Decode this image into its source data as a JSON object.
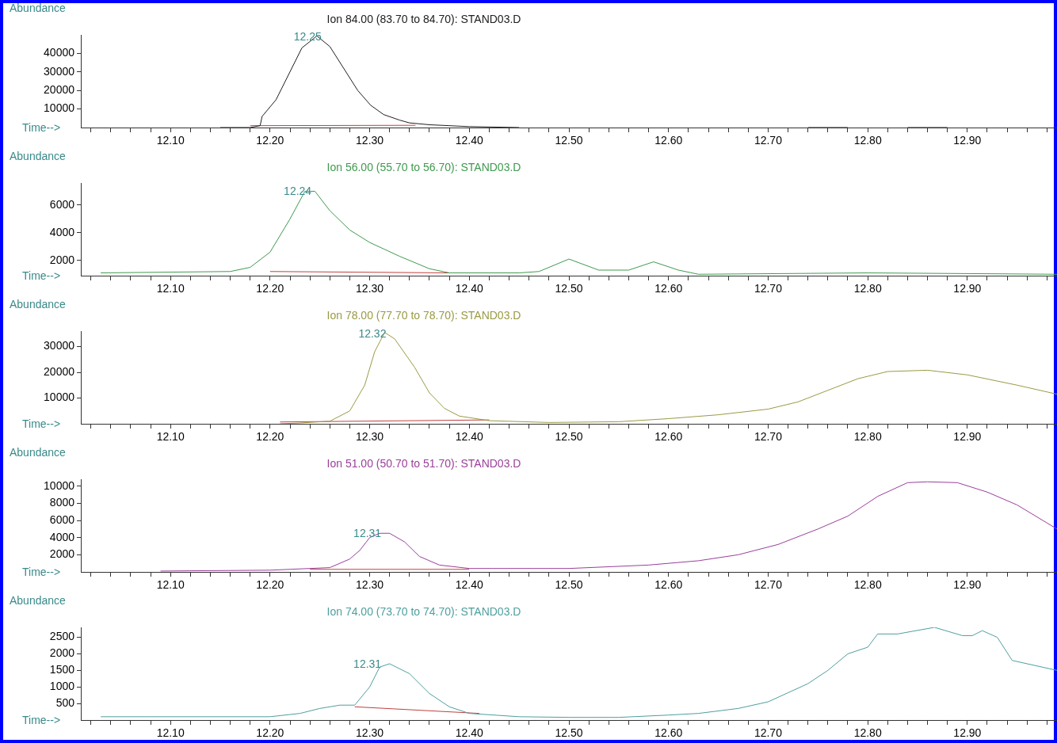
{
  "chart_data": [
    {
      "type": "line",
      "title": "Ion  84.00 (83.70 to 84.70): STAND03.D",
      "xlabel": "Time-->",
      "ylabel": "Abundance",
      "grid": false,
      "legend": false,
      "xlim": [
        12.01,
        12.99
      ],
      "ylim": [
        0,
        50000
      ],
      "yticks": [
        10000,
        20000,
        30000,
        40000
      ],
      "xticks": [
        {
          "value": 12.02,
          "label": null
        },
        {
          "value": 12.04,
          "label": null
        },
        {
          "value": 12.06,
          "label": null
        },
        {
          "value": 12.08,
          "label": null
        },
        {
          "value": 12.1,
          "label": "12.10"
        },
        {
          "value": 12.12,
          "label": null
        },
        {
          "value": 12.14,
          "label": null
        },
        {
          "value": 12.16,
          "label": null
        },
        {
          "value": 12.18,
          "label": null
        },
        {
          "value": 12.2,
          "label": "12.20"
        },
        {
          "value": 12.22,
          "label": null
        },
        {
          "value": 12.24,
          "label": null
        },
        {
          "value": 12.26,
          "label": null
        },
        {
          "value": 12.28,
          "label": null
        },
        {
          "value": 12.3,
          "label": "12.30"
        },
        {
          "value": 12.32,
          "label": null
        },
        {
          "value": 12.34,
          "label": null
        },
        {
          "value": 12.36,
          "label": null
        },
        {
          "value": 12.38,
          "label": null
        },
        {
          "value": 12.4,
          "label": "12.40"
        },
        {
          "value": 12.42,
          "label": null
        },
        {
          "value": 12.44,
          "label": null
        },
        {
          "value": 12.46,
          "label": null
        },
        {
          "value": 12.48,
          "label": null
        },
        {
          "value": 12.5,
          "label": "12.50"
        },
        {
          "value": 12.52,
          "label": null
        },
        {
          "value": 12.54,
          "label": null
        },
        {
          "value": 12.56,
          "label": null
        },
        {
          "value": 12.58,
          "label": null
        },
        {
          "value": 12.6,
          "label": "12.60"
        },
        {
          "value": 12.62,
          "label": null
        },
        {
          "value": 12.64,
          "label": null
        },
        {
          "value": 12.66,
          "label": null
        },
        {
          "value": 12.68,
          "label": null
        },
        {
          "value": 12.7,
          "label": "12.70"
        },
        {
          "value": 12.72,
          "label": null
        },
        {
          "value": 12.74,
          "label": null
        },
        {
          "value": 12.76,
          "label": null
        },
        {
          "value": 12.78,
          "label": null
        },
        {
          "value": 12.8,
          "label": "12.80"
        },
        {
          "value": 12.82,
          "label": null
        },
        {
          "value": 12.84,
          "label": null
        },
        {
          "value": 12.86,
          "label": null
        },
        {
          "value": 12.88,
          "label": null
        },
        {
          "value": 12.9,
          "label": "12.90"
        },
        {
          "value": 12.92,
          "label": null
        },
        {
          "value": 12.94,
          "label": null
        },
        {
          "value": 12.96,
          "label": null
        },
        {
          "value": 12.98,
          "label": null
        }
      ],
      "annotations": [
        {
          "text": "12.25",
          "x": 12.25,
          "y": 49000
        }
      ],
      "series": [
        {
          "color": "#202020",
          "x": [
            12.15,
            12.18,
            12.19,
            12.192,
            12.206,
            12.232,
            12.247,
            12.26,
            12.288,
            12.301,
            12.314,
            12.33,
            12.34,
            12.36,
            12.4,
            12.45,
            12.46,
            12.74,
            12.78,
            12.79,
            12.84,
            12.88
          ],
          "values": [
            0,
            0,
            1000,
            6000,
            15000,
            43000,
            49400,
            43700,
            20000,
            12000,
            7000,
            4000,
            2500,
            1500,
            500,
            0,
            null,
            0,
            0,
            null,
            0,
            0
          ]
        },
        {
          "color": "#c04040",
          "x": [
            12.18,
            12.346
          ],
          "values": [
            1000,
            1200
          ]
        }
      ]
    },
    {
      "type": "line",
      "title": "Ion  56.00 (55.70 to 56.70): STAND03.D",
      "xlabel": "Time-->",
      "ylabel": "Abundance",
      "grid": false,
      "legend": false,
      "xlim": [
        12.01,
        12.99
      ],
      "ylim": [
        900,
        7600
      ],
      "yticks": [
        2000,
        4000,
        6000
      ],
      "xticks": [
        {
          "value": 12.02,
          "label": null
        },
        {
          "value": 12.04,
          "label": null
        },
        {
          "value": 12.06,
          "label": null
        },
        {
          "value": 12.08,
          "label": null
        },
        {
          "value": 12.1,
          "label": "12.10"
        },
        {
          "value": 12.12,
          "label": null
        },
        {
          "value": 12.14,
          "label": null
        },
        {
          "value": 12.16,
          "label": null
        },
        {
          "value": 12.18,
          "label": null
        },
        {
          "value": 12.2,
          "label": "12.20"
        },
        {
          "value": 12.22,
          "label": null
        },
        {
          "value": 12.24,
          "label": null
        },
        {
          "value": 12.26,
          "label": null
        },
        {
          "value": 12.28,
          "label": null
        },
        {
          "value": 12.3,
          "label": "12.30"
        },
        {
          "value": 12.32,
          "label": null
        },
        {
          "value": 12.34,
          "label": null
        },
        {
          "value": 12.36,
          "label": null
        },
        {
          "value": 12.38,
          "label": null
        },
        {
          "value": 12.4,
          "label": "12.40"
        },
        {
          "value": 12.42,
          "label": null
        },
        {
          "value": 12.44,
          "label": null
        },
        {
          "value": 12.46,
          "label": null
        },
        {
          "value": 12.48,
          "label": null
        },
        {
          "value": 12.5,
          "label": "12.50"
        },
        {
          "value": 12.52,
          "label": null
        },
        {
          "value": 12.54,
          "label": null
        },
        {
          "value": 12.56,
          "label": null
        },
        {
          "value": 12.58,
          "label": null
        },
        {
          "value": 12.6,
          "label": "12.60"
        },
        {
          "value": 12.62,
          "label": null
        },
        {
          "value": 12.64,
          "label": null
        },
        {
          "value": 12.66,
          "label": null
        },
        {
          "value": 12.68,
          "label": null
        },
        {
          "value": 12.7,
          "label": "12.70"
        },
        {
          "value": 12.72,
          "label": null
        },
        {
          "value": 12.74,
          "label": null
        },
        {
          "value": 12.76,
          "label": null
        },
        {
          "value": 12.78,
          "label": null
        },
        {
          "value": 12.8,
          "label": "12.80"
        },
        {
          "value": 12.82,
          "label": null
        },
        {
          "value": 12.84,
          "label": null
        },
        {
          "value": 12.86,
          "label": null
        },
        {
          "value": 12.88,
          "label": null
        },
        {
          "value": 12.9,
          "label": "12.90"
        },
        {
          "value": 12.92,
          "label": null
        },
        {
          "value": 12.94,
          "label": null
        },
        {
          "value": 12.96,
          "label": null
        },
        {
          "value": 12.98,
          "label": null
        }
      ],
      "annotations": [
        {
          "text": "12.24",
          "x": 12.24,
          "y": 7000
        }
      ],
      "series": [
        {
          "color": "#3f9a4f",
          "x": [
            12.03,
            12.16,
            12.18,
            12.2,
            12.22,
            12.235,
            12.245,
            12.26,
            12.28,
            12.3,
            12.33,
            12.36,
            12.38,
            12.45,
            12.47,
            12.5,
            12.53,
            12.56,
            12.585,
            12.61,
            12.63,
            12.8,
            12.99
          ],
          "values": [
            1100,
            1200,
            1500,
            2600,
            5000,
            7000,
            7000,
            5600,
            4200,
            3300,
            2300,
            1400,
            1100,
            1100,
            1200,
            2100,
            1300,
            1300,
            1900,
            1300,
            1000,
            1100,
            1000
          ]
        },
        {
          "color": "#c04040",
          "x": [
            12.2,
            12.38
          ],
          "values": [
            1200,
            1100
          ]
        }
      ]
    },
    {
      "type": "line",
      "title": "Ion  78.00 (77.70 to 78.70): STAND03.D",
      "xlabel": "Time-->",
      "ylabel": "Abundance",
      "grid": false,
      "legend": false,
      "xlim": [
        12.01,
        12.99
      ],
      "ylim": [
        0,
        36000
      ],
      "yticks": [
        10000,
        20000,
        30000
      ],
      "xticks": [
        {
          "value": 12.02,
          "label": null
        },
        {
          "value": 12.04,
          "label": null
        },
        {
          "value": 12.06,
          "label": null
        },
        {
          "value": 12.08,
          "label": null
        },
        {
          "value": 12.1,
          "label": "12.10"
        },
        {
          "value": 12.12,
          "label": null
        },
        {
          "value": 12.14,
          "label": null
        },
        {
          "value": 12.16,
          "label": null
        },
        {
          "value": 12.18,
          "label": null
        },
        {
          "value": 12.2,
          "label": "12.20"
        },
        {
          "value": 12.22,
          "label": null
        },
        {
          "value": 12.24,
          "label": null
        },
        {
          "value": 12.26,
          "label": null
        },
        {
          "value": 12.28,
          "label": null
        },
        {
          "value": 12.3,
          "label": "12.30"
        },
        {
          "value": 12.32,
          "label": null
        },
        {
          "value": 12.34,
          "label": null
        },
        {
          "value": 12.36,
          "label": null
        },
        {
          "value": 12.38,
          "label": null
        },
        {
          "value": 12.4,
          "label": "12.40"
        },
        {
          "value": 12.42,
          "label": null
        },
        {
          "value": 12.44,
          "label": null
        },
        {
          "value": 12.46,
          "label": null
        },
        {
          "value": 12.48,
          "label": null
        },
        {
          "value": 12.5,
          "label": "12.50"
        },
        {
          "value": 12.52,
          "label": null
        },
        {
          "value": 12.54,
          "label": null
        },
        {
          "value": 12.56,
          "label": null
        },
        {
          "value": 12.58,
          "label": null
        },
        {
          "value": 12.6,
          "label": "12.60"
        },
        {
          "value": 12.62,
          "label": null
        },
        {
          "value": 12.64,
          "label": null
        },
        {
          "value": 12.66,
          "label": null
        },
        {
          "value": 12.68,
          "label": null
        },
        {
          "value": 12.7,
          "label": "12.70"
        },
        {
          "value": 12.72,
          "label": null
        },
        {
          "value": 12.74,
          "label": null
        },
        {
          "value": 12.76,
          "label": null
        },
        {
          "value": 12.78,
          "label": null
        },
        {
          "value": 12.8,
          "label": "12.80"
        },
        {
          "value": 12.82,
          "label": null
        },
        {
          "value": 12.84,
          "label": null
        },
        {
          "value": 12.86,
          "label": null
        },
        {
          "value": 12.88,
          "label": null
        },
        {
          "value": 12.9,
          "label": "12.90"
        },
        {
          "value": 12.92,
          "label": null
        },
        {
          "value": 12.94,
          "label": null
        },
        {
          "value": 12.96,
          "label": null
        },
        {
          "value": 12.98,
          "label": null
        }
      ],
      "annotations": [
        {
          "text": "12.32",
          "x": 12.315,
          "y": 35000
        }
      ],
      "series": [
        {
          "color": "#9a9a45",
          "x": [
            12.21,
            12.23,
            12.26,
            12.28,
            12.295,
            12.305,
            12.315,
            12.325,
            12.345,
            12.36,
            12.375,
            12.39,
            12.42,
            12.48,
            12.55,
            12.6,
            12.65,
            12.7,
            12.73,
            12.76,
            12.79,
            12.82,
            12.86,
            12.9,
            12.95,
            12.99
          ],
          "values": [
            0,
            300,
            1000,
            5000,
            15000,
            28000,
            35500,
            33000,
            22000,
            12000,
            6000,
            3000,
            1200,
            500,
            800,
            2000,
            3500,
            5700,
            8500,
            13000,
            17500,
            20300,
            20800,
            19000,
            15000,
            11500
          ]
        },
        {
          "color": "#c04040",
          "x": [
            12.21,
            12.42
          ],
          "values": [
            700,
            1500
          ]
        }
      ]
    },
    {
      "type": "line",
      "title": "Ion  51.00 (50.70 to 51.70): STAND03.D",
      "xlabel": "Time-->",
      "ylabel": "Abundance",
      "grid": false,
      "legend": false,
      "xlim": [
        12.01,
        12.99
      ],
      "ylim": [
        0,
        10800
      ],
      "yticks": [
        2000,
        4000,
        6000,
        8000,
        10000
      ],
      "xticks": [
        {
          "value": 12.02,
          "label": null
        },
        {
          "value": 12.04,
          "label": null
        },
        {
          "value": 12.06,
          "label": null
        },
        {
          "value": 12.08,
          "label": null
        },
        {
          "value": 12.1,
          "label": "12.10"
        },
        {
          "value": 12.12,
          "label": null
        },
        {
          "value": 12.14,
          "label": null
        },
        {
          "value": 12.16,
          "label": null
        },
        {
          "value": 12.18,
          "label": null
        },
        {
          "value": 12.2,
          "label": "12.20"
        },
        {
          "value": 12.22,
          "label": null
        },
        {
          "value": 12.24,
          "label": null
        },
        {
          "value": 12.26,
          "label": null
        },
        {
          "value": 12.28,
          "label": null
        },
        {
          "value": 12.3,
          "label": "12.30"
        },
        {
          "value": 12.32,
          "label": null
        },
        {
          "value": 12.34,
          "label": null
        },
        {
          "value": 12.36,
          "label": null
        },
        {
          "value": 12.38,
          "label": null
        },
        {
          "value": 12.4,
          "label": "12.40"
        },
        {
          "value": 12.42,
          "label": null
        },
        {
          "value": 12.44,
          "label": null
        },
        {
          "value": 12.46,
          "label": null
        },
        {
          "value": 12.48,
          "label": null
        },
        {
          "value": 12.5,
          "label": "12.50"
        },
        {
          "value": 12.52,
          "label": null
        },
        {
          "value": 12.54,
          "label": null
        },
        {
          "value": 12.56,
          "label": null
        },
        {
          "value": 12.58,
          "label": null
        },
        {
          "value": 12.6,
          "label": "12.60"
        },
        {
          "value": 12.62,
          "label": null
        },
        {
          "value": 12.64,
          "label": null
        },
        {
          "value": 12.66,
          "label": null
        },
        {
          "value": 12.68,
          "label": null
        },
        {
          "value": 12.7,
          "label": "12.70"
        },
        {
          "value": 12.72,
          "label": null
        },
        {
          "value": 12.74,
          "label": null
        },
        {
          "value": 12.76,
          "label": null
        },
        {
          "value": 12.78,
          "label": null
        },
        {
          "value": 12.8,
          "label": "12.80"
        },
        {
          "value": 12.82,
          "label": null
        },
        {
          "value": 12.84,
          "label": null
        },
        {
          "value": 12.86,
          "label": null
        },
        {
          "value": 12.88,
          "label": null
        },
        {
          "value": 12.9,
          "label": "12.90"
        },
        {
          "value": 12.92,
          "label": null
        },
        {
          "value": 12.94,
          "label": null
        },
        {
          "value": 12.96,
          "label": null
        },
        {
          "value": 12.98,
          "label": null
        }
      ],
      "annotations": [
        {
          "text": "12.31",
          "x": 12.31,
          "y": 4500
        }
      ],
      "series": [
        {
          "color": "#9a3f9a",
          "x": [
            12.09,
            12.2,
            12.26,
            12.28,
            12.29,
            12.3,
            12.31,
            12.32,
            12.335,
            12.35,
            12.37,
            12.4,
            12.5,
            12.58,
            12.63,
            12.67,
            12.71,
            12.75,
            12.78,
            12.81,
            12.84,
            12.86,
            12.89,
            12.92,
            12.95,
            12.99
          ],
          "values": [
            100,
            200,
            500,
            1500,
            2500,
            4000,
            4500,
            4500,
            3500,
            1800,
            800,
            400,
            400,
            800,
            1300,
            2000,
            3200,
            5000,
            6500,
            8800,
            10400,
            10500,
            10400,
            9300,
            7800,
            5000
          ]
        },
        {
          "color": "#c04040",
          "x": [
            12.24,
            12.4
          ],
          "values": [
            300,
            300
          ]
        }
      ]
    },
    {
      "type": "line",
      "title": "Ion  74.00 (73.70 to 74.70): STAND03.D",
      "xlabel": "Time-->",
      "ylabel": "Abundance",
      "grid": false,
      "legend": false,
      "xlim": [
        12.01,
        12.99
      ],
      "ylim": [
        0,
        2800
      ],
      "yticks": [
        500,
        1000,
        1500,
        2000,
        2500
      ],
      "xticks": [
        {
          "value": 12.02,
          "label": null
        },
        {
          "value": 12.04,
          "label": null
        },
        {
          "value": 12.06,
          "label": null
        },
        {
          "value": 12.08,
          "label": null
        },
        {
          "value": 12.1,
          "label": "12.10"
        },
        {
          "value": 12.12,
          "label": null
        },
        {
          "value": 12.14,
          "label": null
        },
        {
          "value": 12.16,
          "label": null
        },
        {
          "value": 12.18,
          "label": null
        },
        {
          "value": 12.2,
          "label": "12.20"
        },
        {
          "value": 12.22,
          "label": null
        },
        {
          "value": 12.24,
          "label": null
        },
        {
          "value": 12.26,
          "label": null
        },
        {
          "value": 12.28,
          "label": null
        },
        {
          "value": 12.3,
          "label": "12.30"
        },
        {
          "value": 12.32,
          "label": null
        },
        {
          "value": 12.34,
          "label": null
        },
        {
          "value": 12.36,
          "label": null
        },
        {
          "value": 12.38,
          "label": null
        },
        {
          "value": 12.4,
          "label": "12.40"
        },
        {
          "value": 12.42,
          "label": null
        },
        {
          "value": 12.44,
          "label": null
        },
        {
          "value": 12.46,
          "label": null
        },
        {
          "value": 12.48,
          "label": null
        },
        {
          "value": 12.5,
          "label": "12.50"
        },
        {
          "value": 12.52,
          "label": null
        },
        {
          "value": 12.54,
          "label": null
        },
        {
          "value": 12.56,
          "label": null
        },
        {
          "value": 12.58,
          "label": null
        },
        {
          "value": 12.6,
          "label": "12.60"
        },
        {
          "value": 12.62,
          "label": null
        },
        {
          "value": 12.64,
          "label": null
        },
        {
          "value": 12.66,
          "label": null
        },
        {
          "value": 12.68,
          "label": null
        },
        {
          "value": 12.7,
          "label": "12.70"
        },
        {
          "value": 12.72,
          "label": null
        },
        {
          "value": 12.74,
          "label": null
        },
        {
          "value": 12.76,
          "label": null
        },
        {
          "value": 12.78,
          "label": null
        },
        {
          "value": 12.8,
          "label": "12.80"
        },
        {
          "value": 12.82,
          "label": null
        },
        {
          "value": 12.84,
          "label": null
        },
        {
          "value": 12.86,
          "label": null
        },
        {
          "value": 12.88,
          "label": null
        },
        {
          "value": 12.9,
          "label": "12.90"
        },
        {
          "value": 12.92,
          "label": null
        },
        {
          "value": 12.94,
          "label": null
        },
        {
          "value": 12.96,
          "label": null
        },
        {
          "value": 12.98,
          "label": null
        }
      ],
      "annotations": [
        {
          "text": "12.31",
          "x": 12.31,
          "y": 1700
        }
      ],
      "series": [
        {
          "color": "#4f9f9f",
          "x": [
            12.03,
            12.2,
            12.23,
            12.25,
            12.27,
            12.285,
            12.3,
            12.31,
            12.32,
            12.34,
            12.36,
            12.38,
            12.4,
            12.45,
            12.5,
            12.55,
            12.6,
            12.63,
            12.67,
            12.7,
            12.74,
            12.76,
            12.78,
            12.8,
            12.81,
            12.83,
            12.867,
            12.895,
            12.905,
            12.915,
            12.93,
            12.945,
            12.99
          ],
          "values": [
            100,
            100,
            200,
            350,
            450,
            450,
            1000,
            1600,
            1700,
            1400,
            800,
            400,
            200,
            100,
            80,
            80,
            150,
            200,
            350,
            550,
            1100,
            1500,
            2000,
            2200,
            2600,
            2600,
            2800,
            2550,
            2550,
            2700,
            2500,
            1800,
            1500
          ]
        },
        {
          "color": "#c04040",
          "x": [
            12.285,
            12.41
          ],
          "values": [
            400,
            200
          ]
        }
      ]
    }
  ]
}
